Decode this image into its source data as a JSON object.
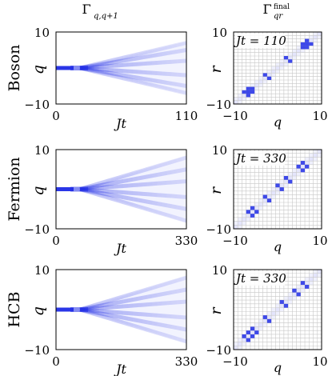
{
  "figure": {
    "col_titles": {
      "left_base": "Γ",
      "left_sub": "q,q+1",
      "right_base": "Γ",
      "right_sup": "final",
      "right_sub": "qr"
    },
    "colors": {
      "accent": "#1f2be6",
      "grid": "#c8c8c8",
      "background": "#ffffff"
    }
  },
  "chart_data": [
    {
      "type": "heatmap",
      "row": "Boson",
      "title": "",
      "xlabel": "Jt",
      "ylabel": "q",
      "xlim": [
        0,
        110
      ],
      "ylim": [
        -10,
        10
      ],
      "xticks": [
        "0",
        "110"
      ],
      "yticks": [
        "10",
        "−10"
      ],
      "description_values": {
        "initial_q": 0,
        "branch_end_q": [
          -7,
          -5,
          -2,
          2,
          5,
          7
        ],
        "peak_intensity_initial": 1.0,
        "peak_intensity_branches": 0.2
      }
    },
    {
      "type": "heatmap",
      "row": "Boson",
      "xlabel": "q",
      "ylabel": "r",
      "xlim": [
        -10,
        10
      ],
      "ylim": [
        -10,
        10
      ],
      "xticks": [
        "−10",
        "10"
      ],
      "yticks": [
        "10",
        "−10"
      ],
      "annotation": "Jt = 110",
      "bright_cells": [
        [
          -7,
          -8
        ],
        [
          -8,
          -7
        ],
        [
          -7,
          -7
        ],
        [
          -6,
          -6
        ],
        [
          -6,
          -7
        ],
        [
          -7,
          -6
        ],
        [
          -3,
          -2
        ],
        [
          -2,
          -3
        ],
        [
          2,
          3
        ],
        [
          3,
          2
        ],
        [
          6,
          7
        ],
        [
          7,
          6
        ],
        [
          7,
          7
        ],
        [
          6,
          6
        ],
        [
          8,
          7
        ],
        [
          7,
          8
        ]
      ]
    },
    {
      "type": "heatmap",
      "row": "Fermion",
      "xlabel": "Jt",
      "ylabel": "q",
      "xlim": [
        0,
        330
      ],
      "ylim": [
        -10,
        10
      ],
      "xticks": [
        "0",
        "330"
      ],
      "yticks": [
        "10",
        "−10"
      ],
      "description_values": {
        "initial_q": 0,
        "branch_end_q": [
          -8,
          -5,
          -2,
          2,
          5,
          8
        ],
        "peak_intensity_initial": 1.0,
        "peak_intensity_branches": 0.15
      }
    },
    {
      "type": "heatmap",
      "row": "Fermion",
      "xlabel": "q",
      "ylabel": "r",
      "xlim": [
        -10,
        10
      ],
      "ylim": [
        -10,
        10
      ],
      "xticks": [
        "−10",
        "10"
      ],
      "yticks": [
        "10",
        "−10"
      ],
      "annotation": "Jt = 330",
      "bright_cells": [
        [
          -7,
          -6
        ],
        [
          -6,
          -7
        ],
        [
          -6,
          -5
        ],
        [
          -5,
          -6
        ],
        [
          -3,
          -2
        ],
        [
          -2,
          -3
        ],
        [
          0,
          1
        ],
        [
          1,
          0
        ],
        [
          2,
          3
        ],
        [
          3,
          2
        ],
        [
          5,
          6
        ],
        [
          6,
          5
        ],
        [
          6,
          7
        ],
        [
          7,
          6
        ]
      ]
    },
    {
      "type": "heatmap",
      "row": "HCB",
      "xlabel": "Jt",
      "ylabel": "q",
      "xlim": [
        0,
        330
      ],
      "ylim": [
        -10,
        10
      ],
      "xticks": [
        "0",
        "330"
      ],
      "yticks": [
        "10",
        "−10"
      ],
      "description_values": {
        "initial_q": 0,
        "branch_end_q": [
          -8,
          -5,
          -2,
          2,
          5,
          8
        ],
        "peak_intensity_initial": 1.0,
        "peak_intensity_branches": 0.15
      }
    },
    {
      "type": "heatmap",
      "row": "HCB",
      "xlabel": "q",
      "ylabel": "r",
      "xlim": [
        -10,
        10
      ],
      "ylim": [
        -10,
        10
      ],
      "xticks": [
        "−10",
        "10"
      ],
      "yticks": [
        "10",
        "−10"
      ],
      "annotation": "Jt = 330",
      "bright_cells": [
        [
          -7,
          -6
        ],
        [
          -6,
          -7
        ],
        [
          -6,
          -5
        ],
        [
          -5,
          -6
        ],
        [
          -7,
          -8
        ],
        [
          -8,
          -7
        ],
        [
          -3,
          -2
        ],
        [
          -2,
          -3
        ],
        [
          1,
          2
        ],
        [
          2,
          1
        ],
        [
          4,
          5
        ],
        [
          5,
          4
        ],
        [
          6,
          7
        ],
        [
          7,
          6
        ]
      ]
    }
  ]
}
